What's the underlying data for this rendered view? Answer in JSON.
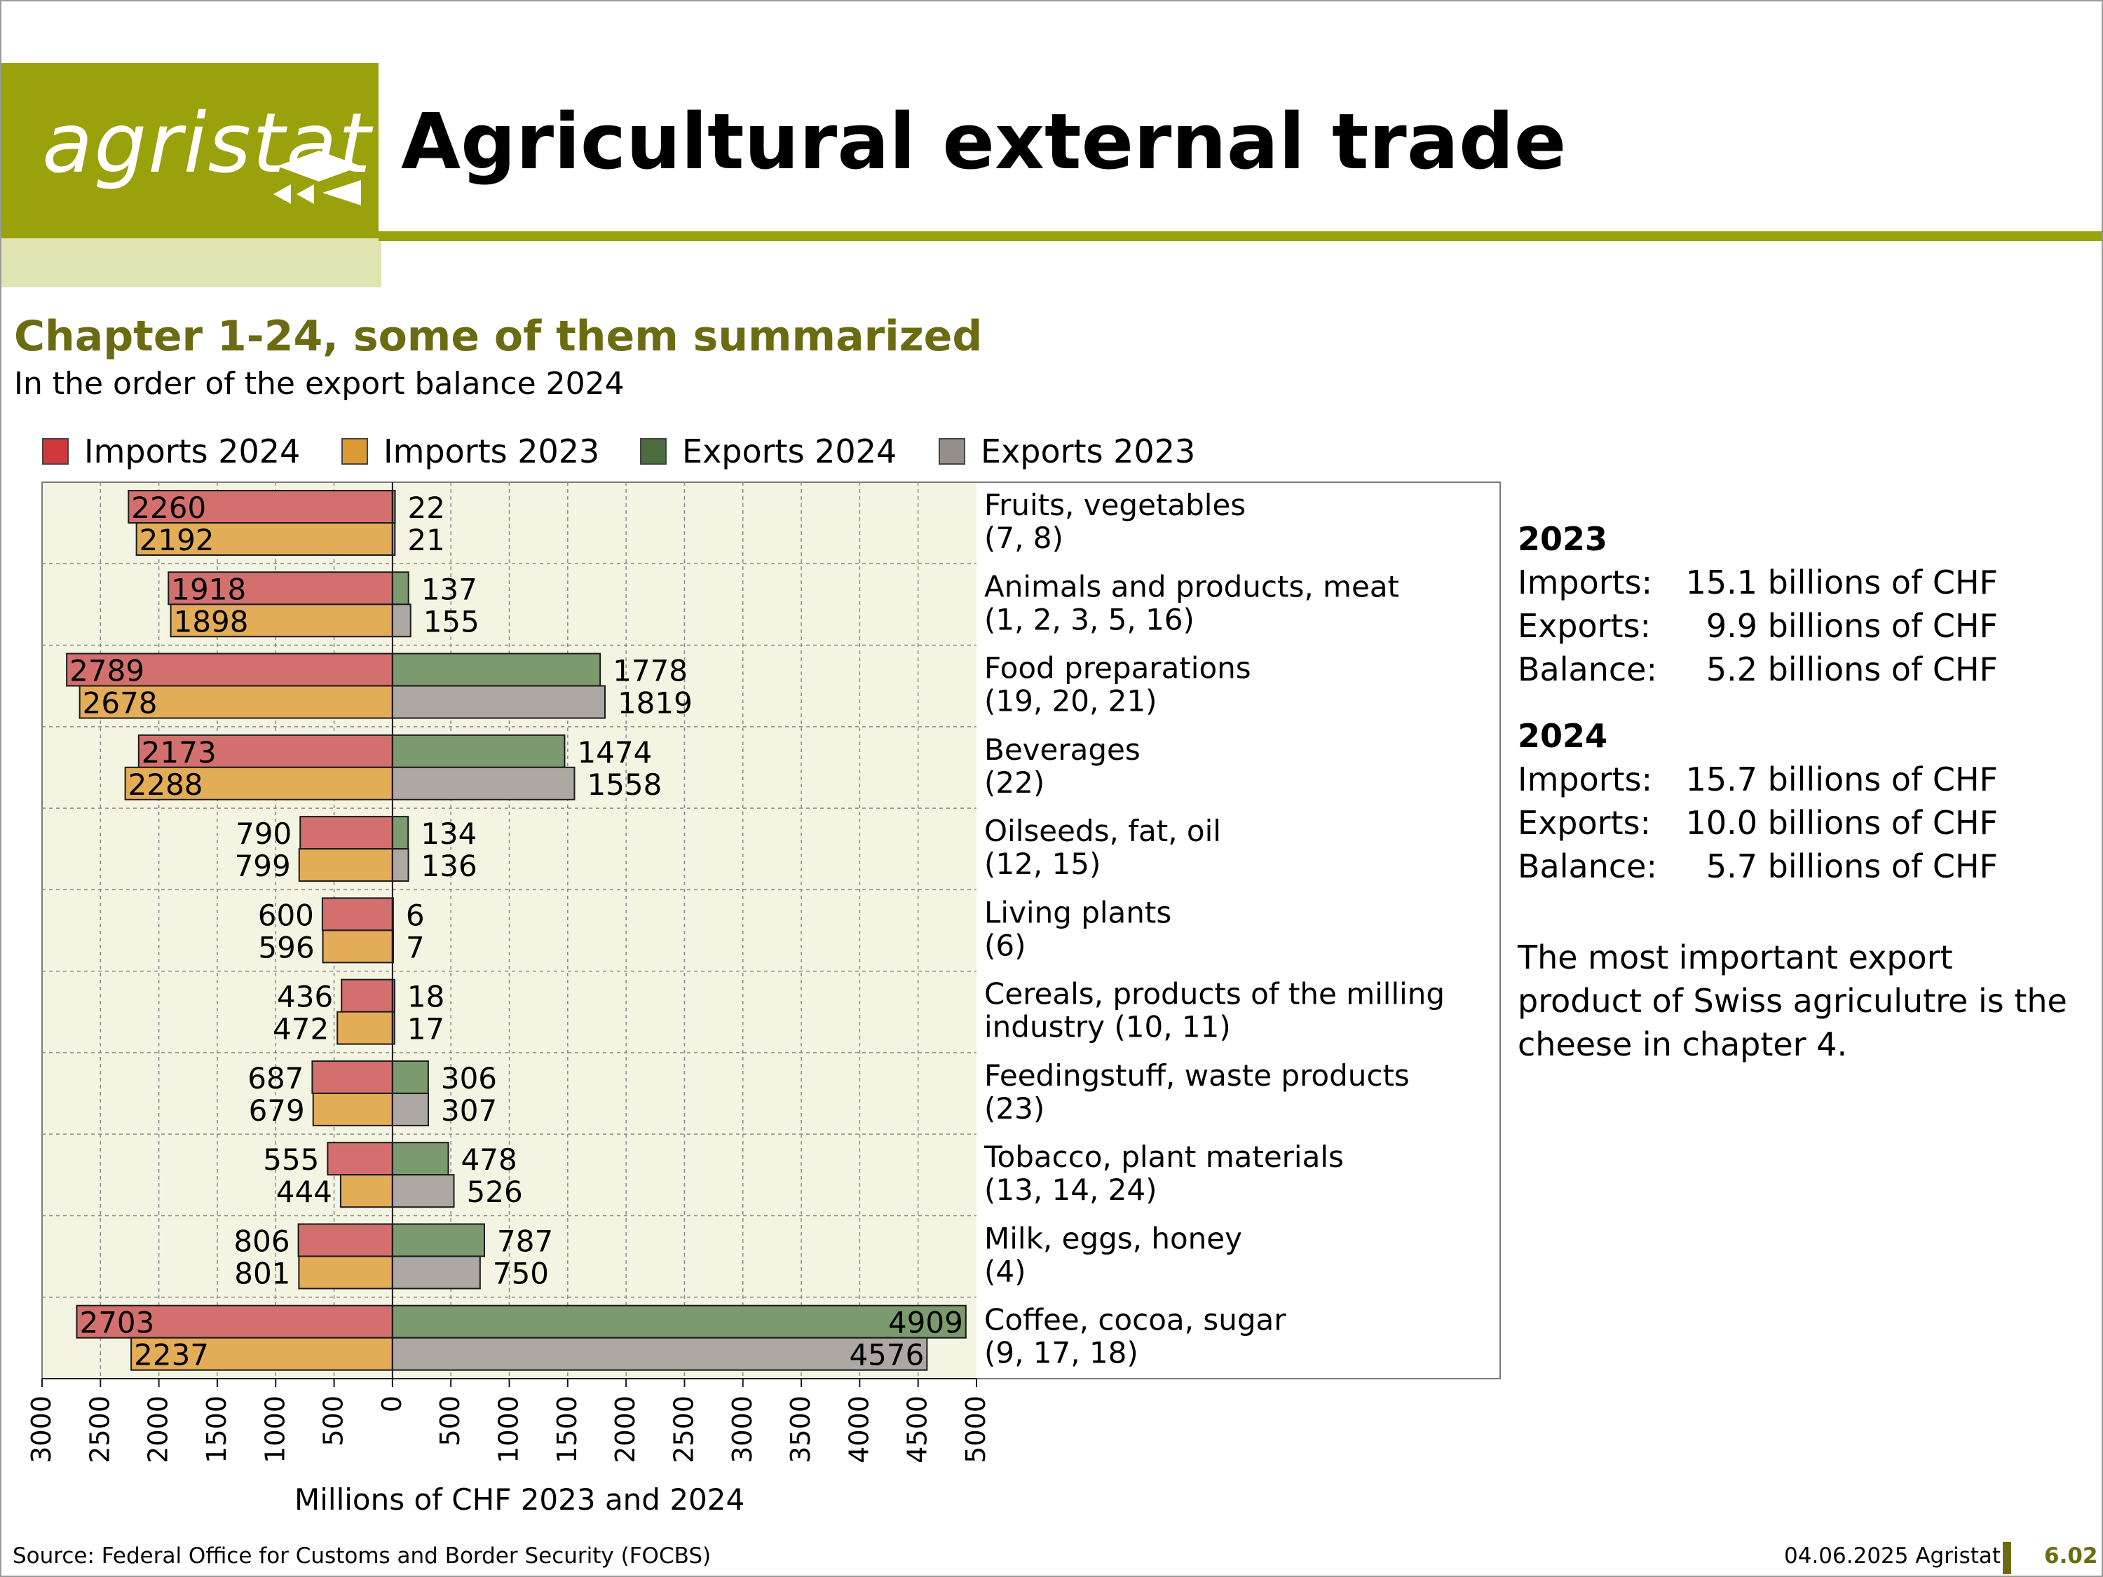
{
  "header": {
    "logo_text": "agristat",
    "title": "Agricultural external trade"
  },
  "subtitle": "Chapter 1-24, some of them summarized",
  "subline": "In the order of the export balance 2024",
  "colors": {
    "imports_2024": "#d3706e",
    "imports_2023": "#e3ac57",
    "exports_2024": "#7b9a6d",
    "exports_2023": "#aea8a4",
    "plot_bg": "#f4f4e3",
    "brand": "#9aa20b",
    "brand_dark": "#6b6c12"
  },
  "chart_data": {
    "type": "bar",
    "orientation": "horizontal",
    "legend_position": "top",
    "grid": true,
    "xlabel": "Millions of CHF 2023 and 2024",
    "xlim": [
      -3000,
      5000
    ],
    "x_tick_labels": [
      "3000",
      "2500",
      "2000",
      "1500",
      "1000",
      "500",
      "0",
      "500",
      "1000",
      "1500",
      "2000",
      "2500",
      "3000",
      "3500",
      "4000",
      "4500",
      "5000"
    ],
    "legend": [
      "Imports 2024",
      "Imports 2023",
      "Exports 2024",
      "Exports 2023"
    ],
    "categories": [
      {
        "line1": "Fruits, vegetables",
        "line2": "(7, 8)"
      },
      {
        "line1": "Animals and products, meat",
        "line2": "(1, 2, 3, 5, 16)"
      },
      {
        "line1": "Food preparations",
        "line2": "(19, 20, 21)"
      },
      {
        "line1": "Beverages",
        "line2": "(22)"
      },
      {
        "line1": "Oilseeds, fat, oil",
        "line2": "(12, 15)"
      },
      {
        "line1": "Living plants",
        "line2": "(6)"
      },
      {
        "line1": "Cereals, products of the milling",
        "line2": "industry (10, 11)"
      },
      {
        "line1": "Feedingstuff, waste products",
        "line2": "(23)"
      },
      {
        "line1": "Tobacco, plant materials",
        "line2": "(13, 14, 24)"
      },
      {
        "line1": "Milk, eggs, honey",
        "line2": "(4)"
      },
      {
        "line1": "Coffee, cocoa, sugar",
        "line2": "(9, 17, 18)"
      }
    ],
    "series": [
      {
        "name": "Imports 2024",
        "values": [
          2260,
          1918,
          2789,
          2173,
          790,
          600,
          436,
          687,
          555,
          806,
          2703
        ]
      },
      {
        "name": "Imports 2023",
        "values": [
          2192,
          1898,
          2678,
          2288,
          799,
          596,
          472,
          679,
          444,
          801,
          2237
        ]
      },
      {
        "name": "Exports 2024",
        "values": [
          22,
          137,
          1778,
          1474,
          134,
          6,
          18,
          306,
          478,
          787,
          4909
        ]
      },
      {
        "name": "Exports 2023",
        "values": [
          21,
          155,
          1819,
          1558,
          136,
          7,
          17,
          307,
          526,
          750,
          4576
        ]
      }
    ]
  },
  "stats": {
    "y2023": {
      "year": "2023",
      "rows": [
        {
          "label": "Imports:",
          "value": "15.1 billions of CHF"
        },
        {
          "label": "Exports:",
          "value": "9.9 billions of CHF"
        },
        {
          "label": "Balance:",
          "value": "5.2 billions of CHF"
        }
      ]
    },
    "y2024": {
      "year": "2024",
      "rows": [
        {
          "label": "Imports:",
          "value": "15.7 billions of CHF"
        },
        {
          "label": "Exports:",
          "value": "10.0 billions of CHF"
        },
        {
          "label": "Balance:",
          "value": "5.7 billions of CHF"
        }
      ]
    }
  },
  "note": "The most important export product of Swiss agriculutre is the cheese in chapter 4.",
  "footer": {
    "source": "Source: Federal Office for Customs and Border Security (FOCBS)",
    "date": "04.06.2025 Agristat",
    "page": "6.02"
  }
}
